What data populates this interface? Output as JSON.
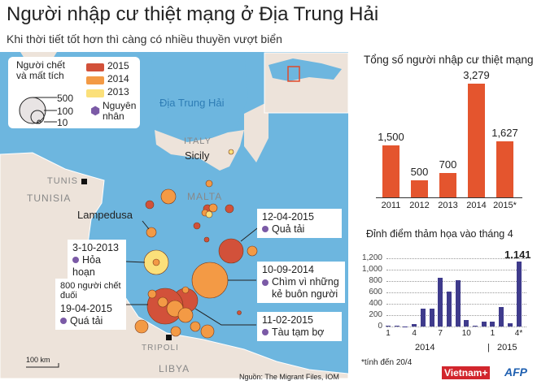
{
  "title": "Người nhập cư thiệt mạng ở Địa Trung Hải",
  "subtitle": "Khi thời tiết tốt hơn thì càng có nhiều thuyền vượt biển",
  "legend": {
    "size_title_1": "Người chết",
    "size_title_2": "và mất tích",
    "sizes": [
      "500",
      "100",
      "10"
    ],
    "years": [
      {
        "label": "2015",
        "color": "#d2513a"
      },
      {
        "label": "2014",
        "color": "#f39a45"
      },
      {
        "label": "2013",
        "color": "#fbe07a"
      }
    ],
    "cause_1": "Nguyên",
    "cause_2": "nhân",
    "cause_color": "#7b5aa6"
  },
  "map": {
    "sea_label": "Địa Trung Hải",
    "italy": "ITALY",
    "sicily": "Sicily",
    "tunis": "TUNIS",
    "tunisia": "TUNISIA",
    "malta": "MALTA",
    "lampedusa": "Lampedusa",
    "tripoli": "TRIPOLI",
    "libya": "LIBYA",
    "scale": "100 km",
    "source": "Nguồn: The Migrant Files, IOM",
    "callouts": [
      {
        "date": "12-04-2015",
        "cause": "Quả tải"
      },
      {
        "date": "3-10-2013",
        "cause": "Hỏa hoạn"
      },
      {
        "date": "10-09-2014",
        "cause": "Chìm vì những kẻ buôn người"
      },
      {
        "note": "800 người chết đuối",
        "date": "19-04-2015",
        "cause": "Quá tải"
      },
      {
        "date": "11-02-2015",
        "cause": "Tàu tạm bợ"
      }
    ]
  },
  "chart_data": [
    {
      "type": "bar",
      "title": "Tổng số người nhập cư thiệt mạng",
      "categories": [
        "2011",
        "2012",
        "2013",
        "2014",
        "2015*"
      ],
      "values": [
        1500,
        500,
        700,
        3279,
        1627
      ],
      "value_labels": [
        "1,500",
        "500",
        "700",
        "3,279",
        "1,627"
      ],
      "color": "#e4552e"
    },
    {
      "type": "bar",
      "title": "Đỉnh điểm thảm họa vào tháng 4",
      "categories": [
        "1",
        "2",
        "3",
        "4",
        "5",
        "6",
        "7",
        "8",
        "9",
        "10",
        "11",
        "12",
        "1",
        "2",
        "3",
        "4*"
      ],
      "tick_labels": [
        "1",
        "4",
        "7",
        "10",
        "1",
        "4*"
      ],
      "groups": [
        "2014",
        "2015"
      ],
      "values": [
        10,
        20,
        5,
        45,
        320,
        310,
        860,
        610,
        810,
        120,
        20,
        90,
        80,
        340,
        60,
        1141
      ],
      "highlight_label": "1.141",
      "ylim": [
        0,
        1200
      ],
      "yticks": [
        "0",
        "200",
        "400",
        "600",
        "800",
        "1,000",
        "1,200"
      ],
      "grid": true,
      "color": "#3f3b8c",
      "footnote": "*tính đến 20/4"
    }
  ],
  "logos": [
    "Vietnam+",
    "AFP"
  ]
}
